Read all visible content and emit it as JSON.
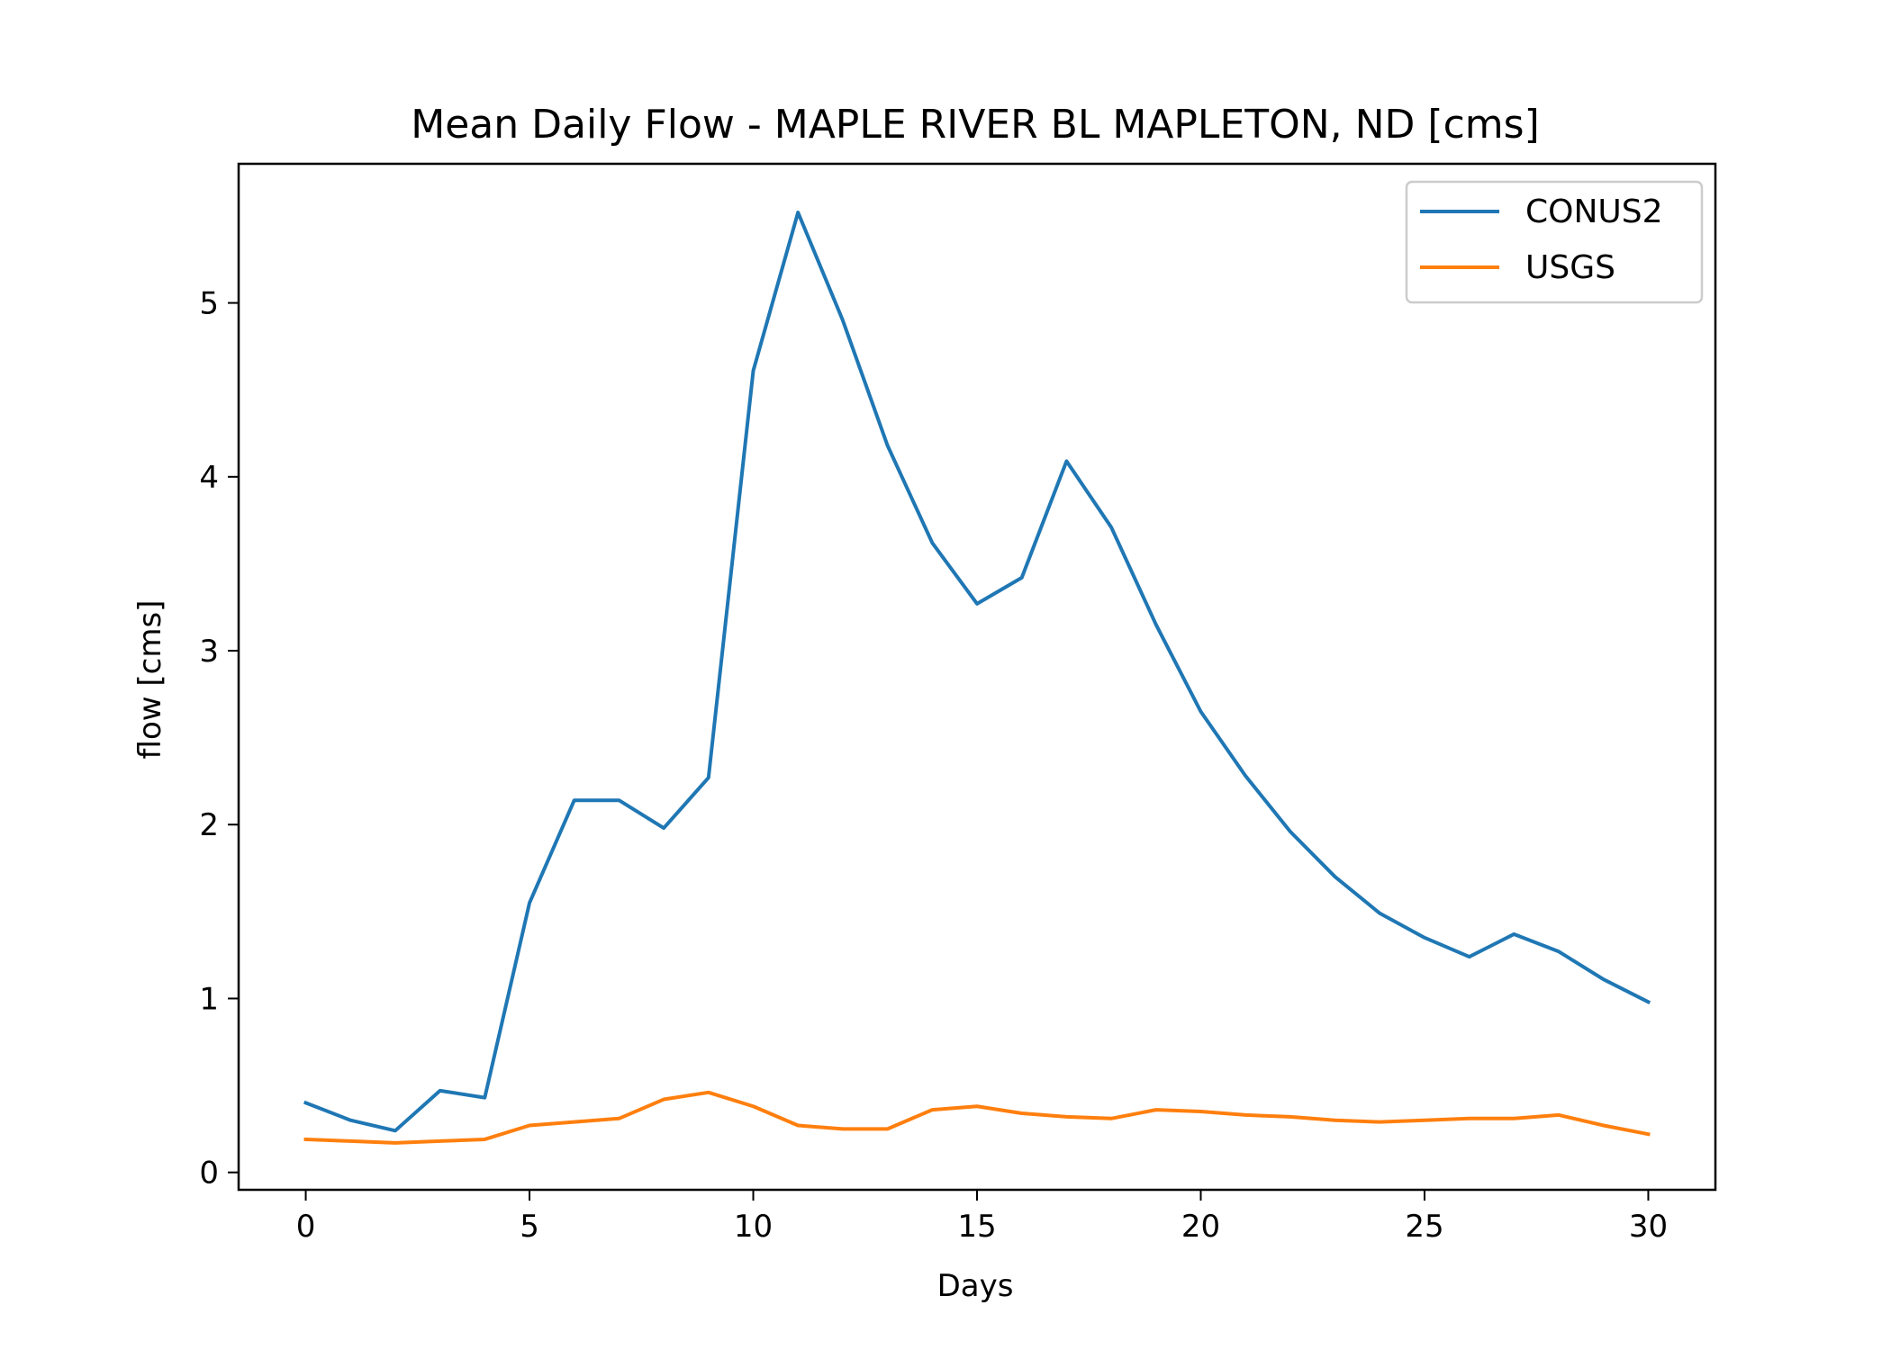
{
  "chart_data": {
    "type": "line",
    "title": "Mean Daily Flow - MAPLE RIVER BL MAPLETON, ND [cms]",
    "xlabel": "Days",
    "ylabel": "flow [cms]",
    "xlim": [
      -1.5,
      31.5
    ],
    "ylim": [
      -0.1,
      5.8
    ],
    "xticks": [
      0,
      5,
      10,
      15,
      20,
      25,
      30
    ],
    "yticks": [
      0,
      1,
      2,
      3,
      4,
      5
    ],
    "grid": false,
    "legend_position": "top-right",
    "x": [
      0,
      1,
      2,
      3,
      4,
      5,
      6,
      7,
      8,
      9,
      10,
      11,
      12,
      13,
      14,
      15,
      16,
      17,
      18,
      19,
      20,
      21,
      22,
      23,
      24,
      25,
      26,
      27,
      28,
      29,
      30
    ],
    "series": [
      {
        "name": "CONUS2",
        "color": "#1f77b4",
        "values": [
          0.4,
          0.3,
          0.24,
          0.47,
          0.43,
          1.55,
          2.14,
          2.14,
          1.98,
          2.27,
          4.61,
          5.52,
          4.9,
          4.18,
          3.62,
          3.27,
          3.42,
          4.09,
          3.71,
          3.15,
          2.65,
          2.28,
          1.96,
          1.7,
          1.49,
          1.35,
          1.24,
          1.37,
          1.27,
          1.11,
          0.98
        ]
      },
      {
        "name": "USGS",
        "color": "#ff7f0e",
        "values": [
          0.19,
          0.18,
          0.17,
          0.18,
          0.19,
          0.27,
          0.29,
          0.31,
          0.42,
          0.46,
          0.38,
          0.27,
          0.25,
          0.25,
          0.36,
          0.38,
          0.34,
          0.32,
          0.31,
          0.36,
          0.35,
          0.33,
          0.32,
          0.3,
          0.29,
          0.3,
          0.31,
          0.31,
          0.33,
          0.27,
          0.22
        ]
      }
    ]
  }
}
